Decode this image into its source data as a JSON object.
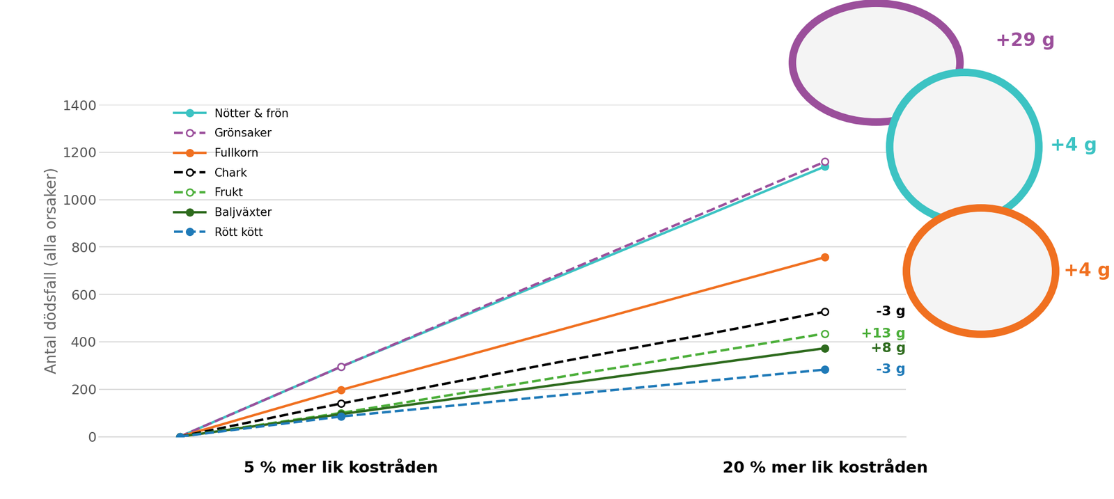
{
  "chart_data": {
    "type": "line",
    "y_label": "Antal dödsfall (alla orsaker)",
    "x": [
      0,
      5,
      20
    ],
    "xlim": [
      -2.5,
      22.5
    ],
    "xticks": [
      {
        "value": 5,
        "label": "5 % mer lik kostråden"
      },
      {
        "value": 20,
        "label": "20 % mer lik kostråden"
      }
    ],
    "ylim": [
      0,
      1400
    ],
    "yticks": [
      0,
      200,
      400,
      600,
      800,
      1000,
      1200,
      1400
    ],
    "grid": true,
    "legend": "upper left",
    "series": [
      {
        "name": "Nötter & frön",
        "color": "#3CC3C3",
        "line_style": "solid",
        "marker": "filled_circle",
        "values": [
          0,
          295,
          1140
        ],
        "annotation": "+4 g"
      },
      {
        "name": "Grönsaker",
        "color": "#9B4F9B",
        "line_style": "dashed",
        "marker": "open_circle",
        "values": [
          0,
          295,
          1160
        ],
        "annotation": "+29 g"
      },
      {
        "name": "Fullkorn",
        "color": "#F07020",
        "line_style": "solid",
        "marker": "filled_circle",
        "values": [
          0,
          197,
          757
        ],
        "annotation": "+4 g"
      },
      {
        "name": "Chark",
        "color": "#000000",
        "line_style": "dashed",
        "marker": "open_circle",
        "values": [
          0,
          140,
          527
        ],
        "annotation": "-3 g"
      },
      {
        "name": "Frukt",
        "color": "#4CAF3A",
        "line_style": "dashed",
        "marker": "open_circle",
        "values": [
          0,
          100,
          435
        ],
        "annotation": "+13 g"
      },
      {
        "name": "Baljväxter",
        "color": "#2E6B1E",
        "line_style": "solid",
        "marker": "filled_circle",
        "values": [
          0,
          95,
          373
        ],
        "annotation": "+8 g"
      },
      {
        "name": "Rött kött",
        "color": "#1F7AB8",
        "line_style": "dashed",
        "marker": "filled_circle",
        "values": [
          0,
          85,
          283
        ],
        "annotation": "-3 g"
      }
    ]
  }
}
